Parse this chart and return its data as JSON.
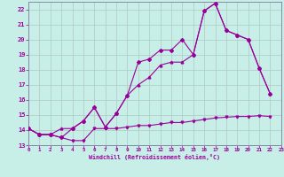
{
  "xlabel": "Windchill (Refroidissement éolien,°C)",
  "background_color": "#c8eee8",
  "grid_color": "#b0c8c4",
  "line_color": "#990099",
  "spine_color": "#8888aa",
  "x_min": 0,
  "x_max": 23,
  "y_min": 13,
  "y_max": 22.5,
  "yticks": [
    13,
    14,
    15,
    16,
    17,
    18,
    19,
    20,
    21,
    22
  ],
  "xticks": [
    0,
    1,
    2,
    3,
    4,
    5,
    6,
    7,
    8,
    9,
    10,
    11,
    12,
    13,
    14,
    15,
    16,
    17,
    18,
    19,
    20,
    21,
    22,
    23
  ],
  "line1_x": [
    0,
    1,
    2,
    3,
    4,
    5,
    6,
    7,
    8,
    9,
    10,
    11,
    12,
    13,
    14,
    15,
    16,
    17,
    18,
    19,
    20,
    21,
    22
  ],
  "line1_y": [
    14.1,
    13.7,
    13.7,
    13.5,
    13.3,
    13.3,
    14.1,
    14.1,
    14.1,
    14.2,
    14.3,
    14.3,
    14.4,
    14.5,
    14.5,
    14.6,
    14.7,
    14.8,
    14.85,
    14.9,
    14.9,
    14.95,
    14.9
  ],
  "line2_x": [
    0,
    1,
    2,
    3,
    4,
    5,
    6,
    7,
    8,
    9,
    10,
    11,
    12,
    13,
    14,
    15,
    16,
    17,
    18,
    19,
    20,
    21,
    22
  ],
  "line2_y": [
    14.1,
    13.7,
    13.7,
    13.5,
    14.1,
    14.6,
    15.5,
    14.2,
    15.1,
    16.3,
    18.5,
    18.7,
    19.3,
    19.3,
    20.0,
    19.0,
    21.9,
    22.4,
    20.6,
    20.3,
    20.0,
    18.1,
    16.4
  ],
  "line3_x": [
    0,
    1,
    2,
    3,
    4,
    5,
    6,
    7,
    8,
    9,
    10,
    11,
    12,
    13,
    14,
    15,
    16,
    17,
    18,
    19,
    20,
    21,
    22
  ],
  "line3_y": [
    14.1,
    13.7,
    13.7,
    14.1,
    14.1,
    14.6,
    15.5,
    14.2,
    15.1,
    16.3,
    17.0,
    17.5,
    18.3,
    18.5,
    18.5,
    19.0,
    21.9,
    22.4,
    20.6,
    20.3,
    20.0,
    18.1,
    16.4
  ]
}
